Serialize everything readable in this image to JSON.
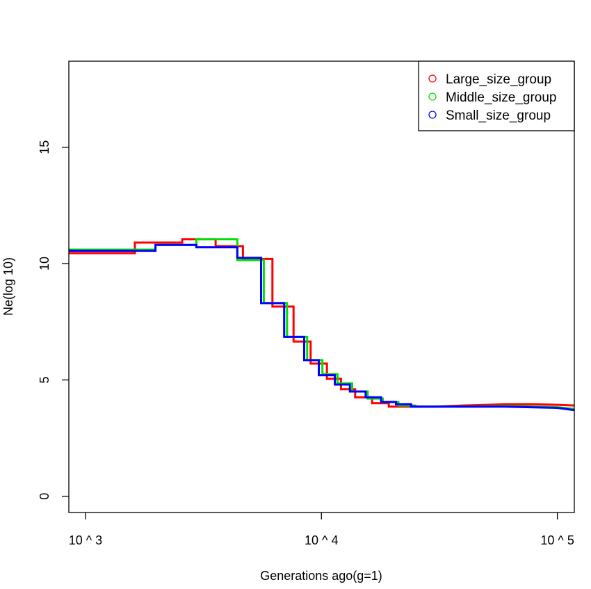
{
  "chart_data": {
    "type": "line",
    "title": "",
    "xlabel": "Generations ago(g=1)",
    "ylabel": "Ne(log 10)",
    "x_scale": "log10",
    "xlim": [
      850,
      118000
    ],
    "ylim": [
      -0.7,
      18.7
    ],
    "x_ticks": [
      {
        "value": 1000,
        "label": "10 ^ 3"
      },
      {
        "value": 10000,
        "label": "10 ^ 4"
      },
      {
        "value": 100000,
        "label": "10 ^ 5"
      }
    ],
    "y_ticks": [
      {
        "value": 0,
        "label": "0"
      },
      {
        "value": 5,
        "label": "5"
      },
      {
        "value": 10,
        "label": "10"
      },
      {
        "value": 15,
        "label": "15"
      }
    ],
    "grid": false,
    "legend_position": "top-right",
    "series": [
      {
        "name": "Large_size_group",
        "color": "#ff0000",
        "points": [
          [
            850,
            10.45
          ],
          [
            1620,
            10.45
          ],
          [
            1620,
            10.9
          ],
          [
            2570,
            10.9
          ],
          [
            2570,
            11.05
          ],
          [
            3560,
            11.05
          ],
          [
            3560,
            10.75
          ],
          [
            4650,
            10.75
          ],
          [
            4650,
            10.2
          ],
          [
            6200,
            10.2
          ],
          [
            6200,
            8.15
          ],
          [
            7620,
            8.15
          ],
          [
            7620,
            6.65
          ],
          [
            9000,
            6.65
          ],
          [
            9000,
            5.7
          ],
          [
            10550,
            5.7
          ],
          [
            10550,
            5.05
          ],
          [
            12100,
            5.05
          ],
          [
            12100,
            4.6
          ],
          [
            13900,
            4.6
          ],
          [
            13900,
            4.25
          ],
          [
            16400,
            4.25
          ],
          [
            16400,
            4.0
          ],
          [
            19300,
            4.0
          ],
          [
            19300,
            3.85
          ],
          [
            22700,
            3.85
          ],
          [
            22700,
            3.85
          ],
          [
            30000,
            3.85
          ],
          [
            40000,
            3.9
          ],
          [
            60000,
            3.95
          ],
          [
            80000,
            3.95
          ],
          [
            100000,
            3.93
          ],
          [
            118000,
            3.9
          ]
        ]
      },
      {
        "name": "Middle_size_group",
        "color": "#00e000",
        "points": [
          [
            850,
            10.6
          ],
          [
            1980,
            10.6
          ],
          [
            1980,
            10.8
          ],
          [
            2950,
            10.8
          ],
          [
            2950,
            11.05
          ],
          [
            4400,
            11.05
          ],
          [
            4400,
            10.15
          ],
          [
            5700,
            10.15
          ],
          [
            5700,
            8.3
          ],
          [
            7150,
            8.3
          ],
          [
            7150,
            6.85
          ],
          [
            8700,
            6.85
          ],
          [
            8700,
            5.85
          ],
          [
            10100,
            5.85
          ],
          [
            10100,
            5.25
          ],
          [
            11700,
            5.25
          ],
          [
            11700,
            4.85
          ],
          [
            13500,
            4.85
          ],
          [
            13500,
            4.5
          ],
          [
            15700,
            4.5
          ],
          [
            15700,
            4.2
          ],
          [
            18200,
            4.2
          ],
          [
            18200,
            4.05
          ],
          [
            21200,
            4.05
          ],
          [
            21200,
            3.9
          ],
          [
            25000,
            3.9
          ],
          [
            25000,
            3.85
          ],
          [
            40000,
            3.85
          ],
          [
            60000,
            3.88
          ],
          [
            80000,
            3.85
          ],
          [
            100000,
            3.83
          ],
          [
            118000,
            3.75
          ]
        ]
      },
      {
        "name": "Small_size_group",
        "color": "#0000ff",
        "points": [
          [
            850,
            10.55
          ],
          [
            1980,
            10.55
          ],
          [
            1980,
            10.8
          ],
          [
            2950,
            10.8
          ],
          [
            2950,
            10.7
          ],
          [
            4400,
            10.7
          ],
          [
            4400,
            10.25
          ],
          [
            5550,
            10.25
          ],
          [
            5550,
            8.3
          ],
          [
            6950,
            8.3
          ],
          [
            6950,
            6.85
          ],
          [
            8450,
            6.85
          ],
          [
            8450,
            5.85
          ],
          [
            9750,
            5.85
          ],
          [
            9750,
            5.2
          ],
          [
            11400,
            5.2
          ],
          [
            11400,
            4.8
          ],
          [
            13200,
            4.8
          ],
          [
            13200,
            4.5
          ],
          [
            15400,
            4.5
          ],
          [
            15400,
            4.25
          ],
          [
            17900,
            4.25
          ],
          [
            17900,
            4.05
          ],
          [
            20700,
            4.05
          ],
          [
            20700,
            3.95
          ],
          [
            24000,
            3.95
          ],
          [
            24000,
            3.85
          ],
          [
            40000,
            3.85
          ],
          [
            60000,
            3.85
          ],
          [
            80000,
            3.82
          ],
          [
            100000,
            3.8
          ],
          [
            118000,
            3.7
          ]
        ]
      }
    ]
  }
}
